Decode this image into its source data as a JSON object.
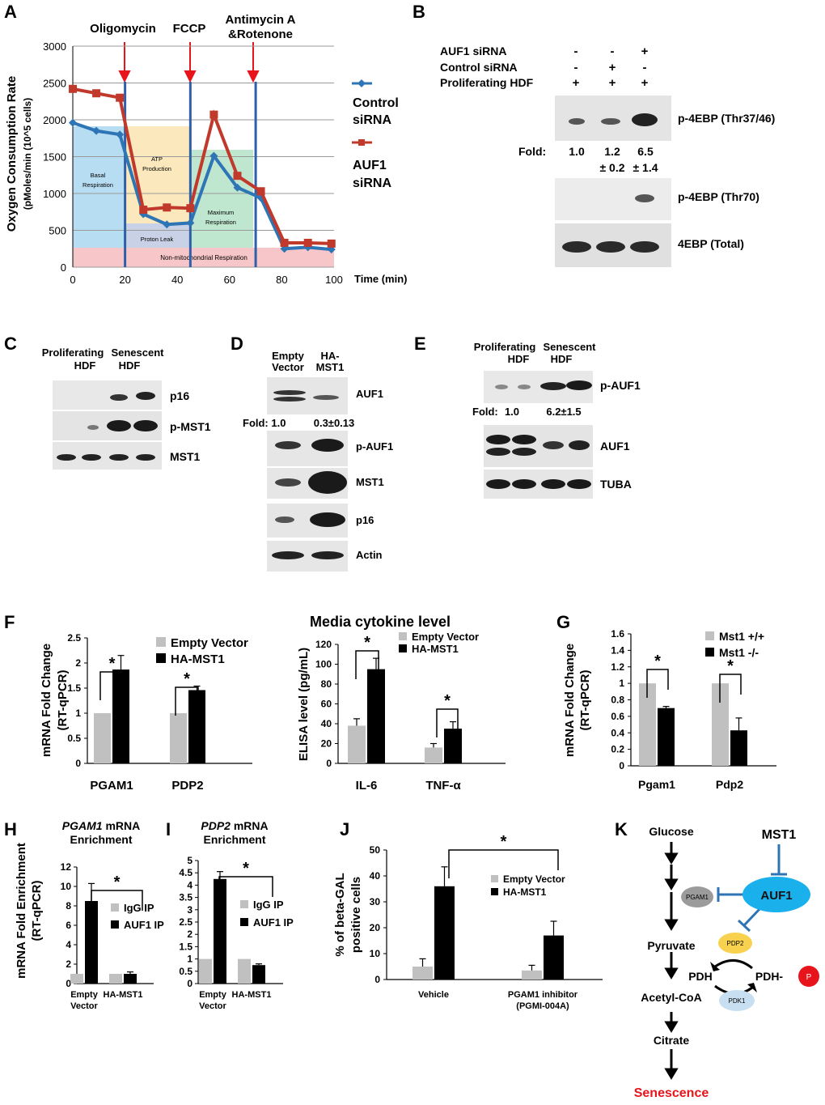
{
  "panels": {
    "A": {
      "letter": "A",
      "markers": [
        "Oligomycin",
        "FCCP",
        "Antimycin A",
        "&Rotenone"
      ],
      "region_labels": {
        "basal": [
          "Basal",
          "Respiration"
        ],
        "atp": [
          "ATP",
          "Production"
        ],
        "max": [
          "Maximum",
          "Respiration"
        ],
        "proton": "Proton Leak",
        "nonmito": "Non-mitochondrial Respiration"
      },
      "region_colors": {
        "basal": "#b7ddf2",
        "atp": "#fbe9bd",
        "max": "#bfe6cf",
        "proton": "#c9d1e6",
        "nonmito": "#f7c6c9"
      }
    },
    "B": {
      "letter": "B",
      "rows": [
        {
          "label": "AUF1 siRNA",
          "signs": [
            "-",
            "-",
            "+"
          ]
        },
        {
          "label": "Control siRNA",
          "signs": [
            "-",
            "+",
            "-"
          ]
        },
        {
          "label": "Proliferating HDF",
          "signs": [
            "+",
            "+",
            "+"
          ]
        }
      ],
      "fold_label": "Fold:",
      "fold_values": [
        "1.0",
        "1.2",
        "6.5"
      ],
      "fold_errors": [
        "± 0.2",
        "± 1.4"
      ],
      "blots": [
        "p-4EBP (Thr37/46)",
        "p-4EBP (Thr70)",
        "4EBP (Total)"
      ]
    },
    "C": {
      "letter": "C",
      "columns": [
        [
          "Proliferating",
          "HDF"
        ],
        [
          "Senescent",
          "HDF"
        ]
      ],
      "blots": [
        "p16",
        "p-MST1",
        "MST1"
      ]
    },
    "D": {
      "letter": "D",
      "columns": [
        [
          "Empty",
          "Vector"
        ],
        [
          "HA-",
          "MST1"
        ]
      ],
      "fold_label": "Fold: 1.0",
      "fold_value2": "0.3±0.13",
      "blots": [
        "AUF1",
        "p-AUF1",
        "MST1",
        "p16",
        "Actin"
      ]
    },
    "E": {
      "letter": "E",
      "columns": [
        [
          "Proliferating",
          "HDF"
        ],
        [
          "Senescent",
          "HDF"
        ]
      ],
      "fold_label": "Fold:",
      "fold_values": [
        "1.0",
        "6.2±1.5"
      ],
      "blots": [
        "p-AUF1",
        "AUF1",
        "TUBA"
      ]
    },
    "K": {
      "letter": "K",
      "pathway": [
        "Glucose",
        "Pyruvate",
        "Acetyl-CoA",
        "Citrate",
        "Senescence"
      ],
      "nodes": {
        "mst1": "MST1",
        "auf1": "AUF1",
        "pgam1": "PGAM1",
        "pdp2": "PDP2",
        "pdk1": "PDK1",
        "pdh": "PDH",
        "pdh_p": "PDH-",
        "p": "P"
      },
      "colors": {
        "auf1": "#1ab0ec",
        "pgam1": "#9b9b9b",
        "pdp2": "#f8d24f",
        "pdk1": "#c8dff1",
        "p": "#e8141b",
        "senescence": "#e8141b",
        "inhibit": "#2e74b5"
      }
    }
  },
  "chart_data": [
    {
      "panel": "A",
      "type": "line",
      "ylabel": "Oxygen Consumption Rate",
      "ylabel2": "(pMoles/min (10^5 cells)",
      "xlabel": "Time (min)",
      "xlim": [
        0,
        100
      ],
      "ylim": [
        0,
        3000
      ],
      "xticks": [
        "0",
        "20",
        "40",
        "60",
        "80",
        "100"
      ],
      "yticks": [
        "0",
        "500",
        "1000",
        "1500",
        "2000",
        "2500",
        "3000"
      ],
      "grid": true,
      "x": [
        0,
        9,
        18,
        27,
        36,
        45,
        54,
        63,
        72,
        81,
        90,
        99
      ],
      "series": [
        {
          "name": "Control siRNA",
          "label_lines": [
            "Control",
            "siRNA"
          ],
          "color": "#2e75b6",
          "values": [
            1960,
            1850,
            1800,
            720,
            580,
            600,
            1510,
            1080,
            940,
            250,
            270,
            240
          ]
        },
        {
          "name": "AUF1 siRNA",
          "label_lines": [
            "AUF1",
            "siRNA"
          ],
          "color": "#c0392b",
          "values": [
            2420,
            2360,
            2300,
            780,
            810,
            800,
            2070,
            1240,
            1030,
            330,
            330,
            320
          ]
        }
      ],
      "vlines": [
        20,
        45,
        70
      ],
      "legend": "right"
    },
    {
      "panel": "F",
      "type": "bar",
      "ylabel": "mRNA Fold Change",
      "ylabel2": "(RT-qPCR)",
      "categories": [
        "PGAM1",
        "PDP2"
      ],
      "yticks": [
        "0",
        "0.5",
        "1",
        "1.5",
        "2",
        "2.5"
      ],
      "ylim": [
        0,
        2.5
      ],
      "series": [
        {
          "name": "Empty Vector",
          "color": "#c0c0c0",
          "values": [
            1.0,
            1.0
          ],
          "errors": [
            0,
            0
          ]
        },
        {
          "name": "HA-MST1",
          "color": "#000000",
          "values": [
            1.87,
            1.46
          ],
          "errors": [
            0.28,
            0.08
          ]
        }
      ],
      "significance": [
        "*",
        "*"
      ],
      "legend": "top-right"
    },
    {
      "panel": "F2",
      "type": "bar",
      "title": "Media cytokine level",
      "ylabel": "ELISA level (pg/mL)",
      "categories": [
        "IL-6",
        "TNF-α"
      ],
      "yticks": [
        "0",
        "20",
        "40",
        "60",
        "80",
        "100",
        "120"
      ],
      "ylim": [
        0,
        120
      ],
      "series": [
        {
          "name": "Empty Vector",
          "color": "#c0c0c0",
          "values": [
            38,
            16
          ],
          "errors": [
            7,
            4
          ]
        },
        {
          "name": "HA-MST1",
          "color": "#000000",
          "values": [
            95,
            35
          ],
          "errors": [
            11,
            7
          ]
        }
      ],
      "significance": [
        "*",
        "*"
      ],
      "legend": "top-right"
    },
    {
      "panel": "G",
      "type": "bar",
      "ylabel": "mRNA Fold Change",
      "ylabel2": "(RT-qPCR)",
      "categories": [
        "Pgam1",
        "Pdp2"
      ],
      "yticks": [
        "0",
        "0.2",
        "0.4",
        "0.6",
        "0.8",
        "1",
        "1.2",
        "1.4",
        "1.6"
      ],
      "ylim": [
        0,
        1.6
      ],
      "series": [
        {
          "name": "Mst1 +/+",
          "color": "#c0c0c0",
          "values": [
            1.0,
            1.0
          ],
          "errors": [
            0,
            0
          ]
        },
        {
          "name": "Mst1 -/-",
          "color": "#000000",
          "values": [
            0.7,
            0.43
          ],
          "errors": [
            0.02,
            0.15
          ]
        }
      ],
      "significance": [
        "*",
        "*"
      ],
      "legend": "top-right"
    },
    {
      "panel": "H",
      "type": "bar",
      "title_italic": "PGAM1",
      "title_rest": " mRNA",
      "title2": "Enrichment",
      "ylabel": "mRNA Fold Enrichment",
      "ylabel2": "(RT-qPCR)",
      "categories": [
        "Empty Vector",
        "HA-MST1"
      ],
      "yticks": [
        "0",
        "2",
        "4",
        "6",
        "8",
        "10",
        "12"
      ],
      "ylim": [
        0,
        12
      ],
      "series": [
        {
          "name": "IgG IP",
          "color": "#c0c0c0",
          "values": [
            1.0,
            1.0
          ],
          "errors": [
            0,
            0
          ]
        },
        {
          "name": "AUF1 IP",
          "color": "#000000",
          "values": [
            8.5,
            1.0
          ],
          "errors": [
            1.8,
            0.2
          ]
        }
      ],
      "significance": [
        "*"
      ],
      "legend": "right"
    },
    {
      "panel": "I",
      "type": "bar",
      "title_italic": "PDP2",
      "title_rest": " mRNA",
      "title2": "Enrichment",
      "categories": [
        "Empty Vector",
        "HA-MST1"
      ],
      "yticks": [
        "0",
        "0.5",
        "1",
        "1.5",
        "2",
        "2.5",
        "3",
        "3.5",
        "4",
        "4.5",
        "5"
      ],
      "ylim": [
        0,
        5
      ],
      "series": [
        {
          "name": "IgG IP",
          "color": "#c0c0c0",
          "values": [
            1.0,
            1.0
          ],
          "errors": [
            0,
            0
          ]
        },
        {
          "name": "AUF1 IP",
          "color": "#000000",
          "values": [
            4.25,
            0.75
          ],
          "errors": [
            0.3,
            0.05
          ]
        }
      ],
      "significance": [
        "*"
      ],
      "legend": "right"
    },
    {
      "panel": "J",
      "type": "bar",
      "ylabel": "% of beta-GAL",
      "ylabel2": "positive cells",
      "categories": [
        "Vehicle",
        "PGAM1 inhibitor"
      ],
      "category_sub": [
        "",
        "(PGMI-004A)"
      ],
      "yticks": [
        "0",
        "10",
        "20",
        "30",
        "40",
        "50"
      ],
      "ylim": [
        0,
        50
      ],
      "series": [
        {
          "name": "Empty Vector",
          "color": "#c0c0c0",
          "values": [
            5,
            3.5
          ],
          "errors": [
            3,
            2
          ]
        },
        {
          "name": "HA-MST1",
          "color": "#000000",
          "values": [
            36,
            17
          ],
          "errors": [
            7.5,
            5.5
          ]
        }
      ],
      "significance": [
        "*"
      ],
      "legend": "right"
    }
  ]
}
